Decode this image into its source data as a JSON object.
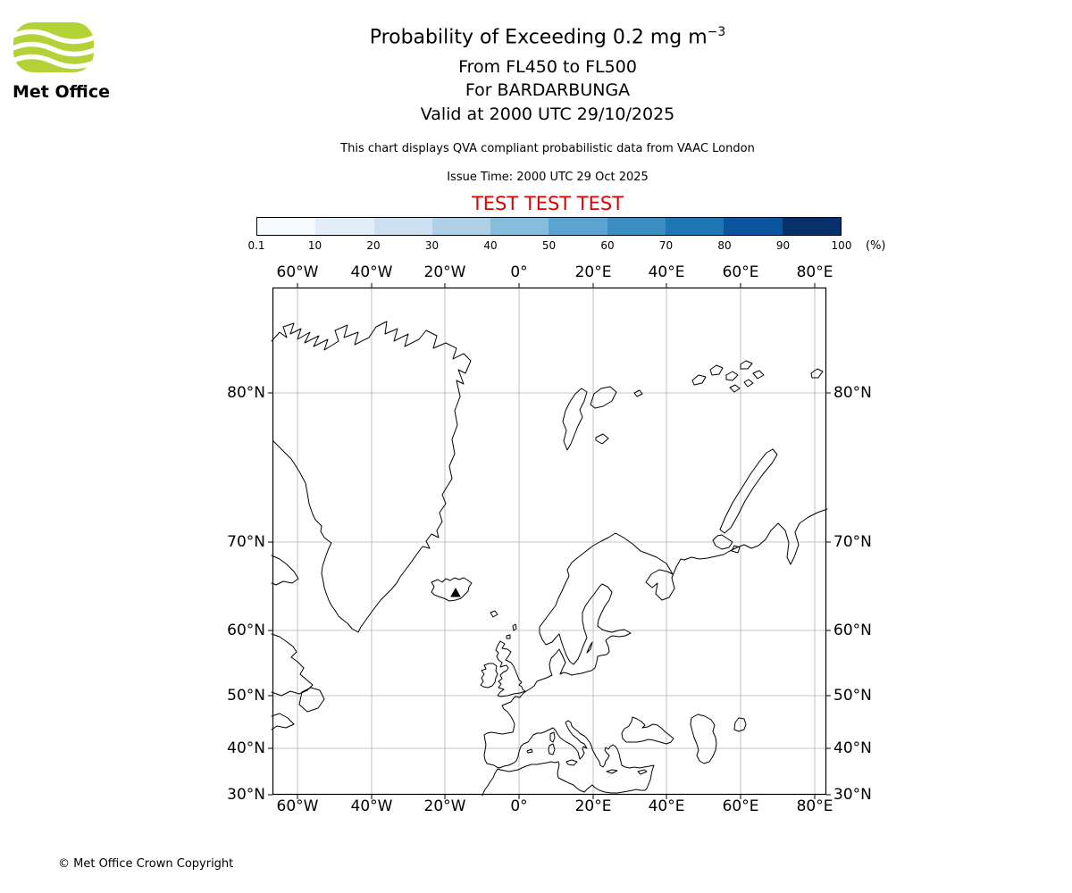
{
  "logo": {
    "text": "Met Office",
    "brand_green": "#b2d235"
  },
  "header": {
    "title": "Probability of Exceeding 0.2 mg m",
    "title_superscript": "−3",
    "subtitle1": "From FL450 to FL500",
    "subtitle2": "For BARDARBUNGA",
    "subtitle3": "Valid at 2000 UTC 29/10/2025",
    "note": "This chart displays QVA compliant probabilistic data from VAAC London",
    "issue_time": "Issue Time: 2000 UTC 29 Oct 2025",
    "test_banner": "TEST TEST TEST",
    "test_banner_color": "#dd0000"
  },
  "colorbar": {
    "unit_label": "(%)",
    "tick_labels": [
      "0.1",
      "10",
      "20",
      "30",
      "40",
      "50",
      "60",
      "70",
      "80",
      "90",
      "100"
    ],
    "colors": [
      "#f7fbff",
      "#e2edf8",
      "#cde0f1",
      "#aed1e7",
      "#87bddc",
      "#5ba3d0",
      "#3a8ec1",
      "#1e77b4",
      "#0b559f",
      "#08306b"
    ]
  },
  "map": {
    "x_tick_labels": [
      "60°W",
      "40°W",
      "20°W",
      "0°",
      "20°E",
      "40°E",
      "60°E",
      "80°E"
    ],
    "y_tick_labels": [
      "80°N",
      "70°N",
      "60°N",
      "50°N",
      "40°N",
      "30°N"
    ],
    "marker": "volcano-triangle"
  },
  "footer": {
    "copyright": "© Met Office Crown Copyright"
  }
}
